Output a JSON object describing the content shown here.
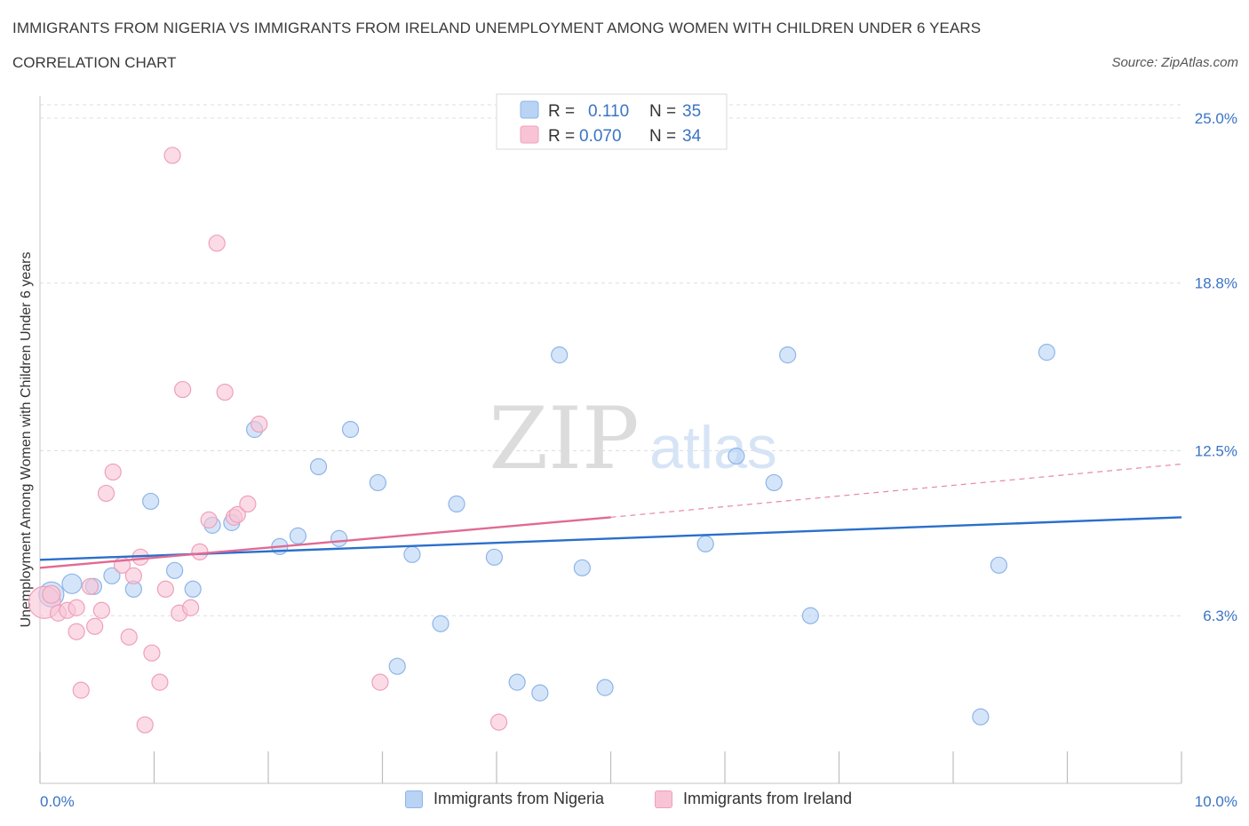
{
  "header": {
    "title": "IMMIGRANTS FROM NIGERIA VS IMMIGRANTS FROM IRELAND UNEMPLOYMENT AMONG WOMEN WITH CHILDREN UNDER 6 YEARS",
    "subtitle": "CORRELATION CHART",
    "source": "Source: ZipAtlas.com"
  },
  "watermark": {
    "zip": "ZIP",
    "atlas": "atlas"
  },
  "colors": {
    "nigeria_fill": "#b9d3f5",
    "nigeria_stroke": "#8db5e8",
    "nigeria_line": "#2a6fcb",
    "ireland_fill": "#f8c4d5",
    "ireland_stroke": "#ef9fba",
    "ireland_line": "#e06a93",
    "axis_text": "#3a74c4",
    "grid": "#dddddd"
  },
  "legend_top": [
    {
      "r_label": "R =",
      "r_value": "0.110",
      "n_label": "N =",
      "n_value": "35"
    },
    {
      "r_label": "R =",
      "r_value": "0.070",
      "n_label": "N =",
      "n_value": "34"
    }
  ],
  "chart_data": {
    "type": "scatter",
    "title": "IMMIGRANTS FROM NIGERIA VS IMMIGRANTS FROM IRELAND UNEMPLOYMENT AMONG WOMEN WITH CHILDREN UNDER 6 YEARS",
    "subtitle": "CORRELATION CHART",
    "ylabel": "Unemployment Among Women with Children Under 6 years",
    "xlim": [
      0,
      10
    ],
    "ylim": [
      0,
      25.5
    ],
    "x_tick_labels": [
      "0.0%",
      "10.0%"
    ],
    "y_ticks": [
      {
        "value": 6.3,
        "label": "6.3%"
      },
      {
        "value": 12.5,
        "label": "12.5%"
      },
      {
        "value": 18.8,
        "label": "18.8%"
      },
      {
        "value": 25.0,
        "label": "25.0%"
      }
    ],
    "grid": true,
    "legend_position": "top-center",
    "series": [
      {
        "name": "Immigrants from Nigeria",
        "r": 0.11,
        "n": 35,
        "trend": {
          "x": [
            0,
            10
          ],
          "y": [
            8.4,
            10.0
          ],
          "style": "solid"
        },
        "points": [
          {
            "x": 0.1,
            "y": 7.1,
            "s": 14
          },
          {
            "x": 0.28,
            "y": 7.5,
            "s": 11
          },
          {
            "x": 0.47,
            "y": 7.4,
            "s": 9
          },
          {
            "x": 0.63,
            "y": 7.8,
            "s": 9
          },
          {
            "x": 0.82,
            "y": 7.3,
            "s": 9
          },
          {
            "x": 0.97,
            "y": 10.6,
            "s": 9
          },
          {
            "x": 1.18,
            "y": 8.0,
            "s": 9
          },
          {
            "x": 1.34,
            "y": 7.3,
            "s": 9
          },
          {
            "x": 1.51,
            "y": 9.7,
            "s": 9
          },
          {
            "x": 1.68,
            "y": 9.8,
            "s": 9
          },
          {
            "x": 1.88,
            "y": 13.3,
            "s": 9
          },
          {
            "x": 2.1,
            "y": 8.9,
            "s": 9
          },
          {
            "x": 2.26,
            "y": 9.3,
            "s": 9
          },
          {
            "x": 2.44,
            "y": 11.9,
            "s": 9
          },
          {
            "x": 2.62,
            "y": 9.2,
            "s": 9
          },
          {
            "x": 2.72,
            "y": 13.3,
            "s": 9
          },
          {
            "x": 2.96,
            "y": 11.3,
            "s": 9
          },
          {
            "x": 3.13,
            "y": 4.4,
            "s": 9
          },
          {
            "x": 3.26,
            "y": 8.6,
            "s": 9
          },
          {
            "x": 3.51,
            "y": 6.0,
            "s": 9
          },
          {
            "x": 3.65,
            "y": 10.5,
            "s": 9
          },
          {
            "x": 3.98,
            "y": 8.5,
            "s": 9
          },
          {
            "x": 4.18,
            "y": 3.8,
            "s": 9
          },
          {
            "x": 4.38,
            "y": 3.4,
            "s": 9
          },
          {
            "x": 4.55,
            "y": 16.1,
            "s": 9
          },
          {
            "x": 4.75,
            "y": 8.1,
            "s": 9
          },
          {
            "x": 4.95,
            "y": 3.6,
            "s": 9
          },
          {
            "x": 5.83,
            "y": 9.0,
            "s": 9
          },
          {
            "x": 6.1,
            "y": 12.3,
            "s": 9
          },
          {
            "x": 6.43,
            "y": 11.3,
            "s": 9
          },
          {
            "x": 6.55,
            "y": 16.1,
            "s": 9
          },
          {
            "x": 6.75,
            "y": 6.3,
            "s": 9
          },
          {
            "x": 8.24,
            "y": 2.5,
            "s": 9
          },
          {
            "x": 8.4,
            "y": 8.2,
            "s": 9
          },
          {
            "x": 8.82,
            "y": 16.2,
            "s": 9
          }
        ]
      },
      {
        "name": "Immigrants from Ireland",
        "r": 0.07,
        "n": 34,
        "trend": {
          "x": [
            0,
            5.0
          ],
          "y": [
            8.1,
            10.0
          ],
          "style": "solid",
          "extension": {
            "x": [
              5.0,
              10
            ],
            "y": [
              10.0,
              12.0
            ],
            "style": "dashed"
          }
        },
        "points": [
          {
            "x": 0.04,
            "y": 6.8,
            "s": 18
          },
          {
            "x": 0.1,
            "y": 7.1,
            "s": 10
          },
          {
            "x": 0.16,
            "y": 6.4,
            "s": 9
          },
          {
            "x": 0.24,
            "y": 6.5,
            "s": 9
          },
          {
            "x": 0.32,
            "y": 6.6,
            "s": 9
          },
          {
            "x": 0.32,
            "y": 5.7,
            "s": 9
          },
          {
            "x": 0.36,
            "y": 3.5,
            "s": 9
          },
          {
            "x": 0.44,
            "y": 7.4,
            "s": 9
          },
          {
            "x": 0.48,
            "y": 5.9,
            "s": 9
          },
          {
            "x": 0.54,
            "y": 6.5,
            "s": 9
          },
          {
            "x": 0.58,
            "y": 10.9,
            "s": 9
          },
          {
            "x": 0.64,
            "y": 11.7,
            "s": 9
          },
          {
            "x": 0.72,
            "y": 8.2,
            "s": 9
          },
          {
            "x": 0.78,
            "y": 5.5,
            "s": 9
          },
          {
            "x": 0.82,
            "y": 7.8,
            "s": 9
          },
          {
            "x": 0.88,
            "y": 8.5,
            "s": 9
          },
          {
            "x": 0.92,
            "y": 2.2,
            "s": 9
          },
          {
            "x": 0.98,
            "y": 4.9,
            "s": 9
          },
          {
            "x": 1.05,
            "y": 3.8,
            "s": 9
          },
          {
            "x": 1.1,
            "y": 7.3,
            "s": 9
          },
          {
            "x": 1.16,
            "y": 23.6,
            "s": 9
          },
          {
            "x": 1.22,
            "y": 6.4,
            "s": 9
          },
          {
            "x": 1.25,
            "y": 14.8,
            "s": 9
          },
          {
            "x": 1.32,
            "y": 6.6,
            "s": 9
          },
          {
            "x": 1.4,
            "y": 8.7,
            "s": 9
          },
          {
            "x": 1.48,
            "y": 9.9,
            "s": 9
          },
          {
            "x": 1.55,
            "y": 20.3,
            "s": 9
          },
          {
            "x": 1.62,
            "y": 14.7,
            "s": 9
          },
          {
            "x": 1.7,
            "y": 10.0,
            "s": 9
          },
          {
            "x": 1.73,
            "y": 10.1,
            "s": 9
          },
          {
            "x": 1.82,
            "y": 10.5,
            "s": 9
          },
          {
            "x": 1.92,
            "y": 13.5,
            "s": 9
          },
          {
            "x": 2.98,
            "y": 3.8,
            "s": 9
          },
          {
            "x": 4.02,
            "y": 2.3,
            "s": 9
          }
        ]
      }
    ]
  }
}
